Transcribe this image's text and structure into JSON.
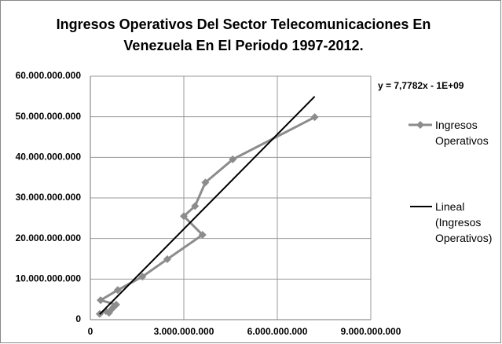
{
  "chart_data": {
    "type": "scatter",
    "title": "Ingresos Operativos Del Sector Telecomunicaciones En Venezuela En El Periodo 1997-2012.",
    "annotation": "y = 7,7782x - 1E+09",
    "series": [
      {
        "name": "Ingresos Operativos",
        "color": "#8c8c8c",
        "x": [
          300000000,
          500000000,
          600000000,
          700000000,
          750000000,
          830000000,
          330000000,
          880000000,
          1670000000,
          2470000000,
          3600000000,
          3000000000,
          3360000000,
          3690000000,
          4570000000,
          7200000000
        ],
        "values": [
          1400000000,
          2100000000,
          1700000000,
          2700000000,
          3200000000,
          3700000000,
          4800000000,
          7300000000,
          10600000000,
          14900000000,
          20900000000,
          25500000000,
          28000000000,
          33800000000,
          39500000000,
          49900000000
        ]
      }
    ],
    "trendline": {
      "name": "Lineal (Ingresos Operativos)",
      "color": "#000000",
      "x": [
        300000000,
        7200000000
      ],
      "values": [
        1330000000,
        55000000000
      ]
    },
    "xlim": [
      0,
      9000000000
    ],
    "xticks": [
      0,
      {
        "value": 3000000000,
        "label": "3.000.000.000"
      },
      {
        "value": 6000000000,
        "label": "6.000.000.000"
      },
      {
        "value": 9000000000,
        "label": "9.000.000.000"
      }
    ],
    "ylim": [
      0,
      60000000000
    ],
    "yticks": [
      0,
      {
        "value": 10000000000,
        "label": "10.000.000.000"
      },
      {
        "value": 20000000000,
        "label": "20.000.000.000"
      },
      {
        "value": 30000000000,
        "label": "30.000.000.000"
      },
      {
        "value": 40000000000,
        "label": "40.000.000.000"
      },
      {
        "value": 50000000000,
        "label": "50.000.000.000"
      },
      {
        "value": 60000000000,
        "label": "60.000.000.000"
      }
    ],
    "grid": true,
    "legend": "right"
  }
}
